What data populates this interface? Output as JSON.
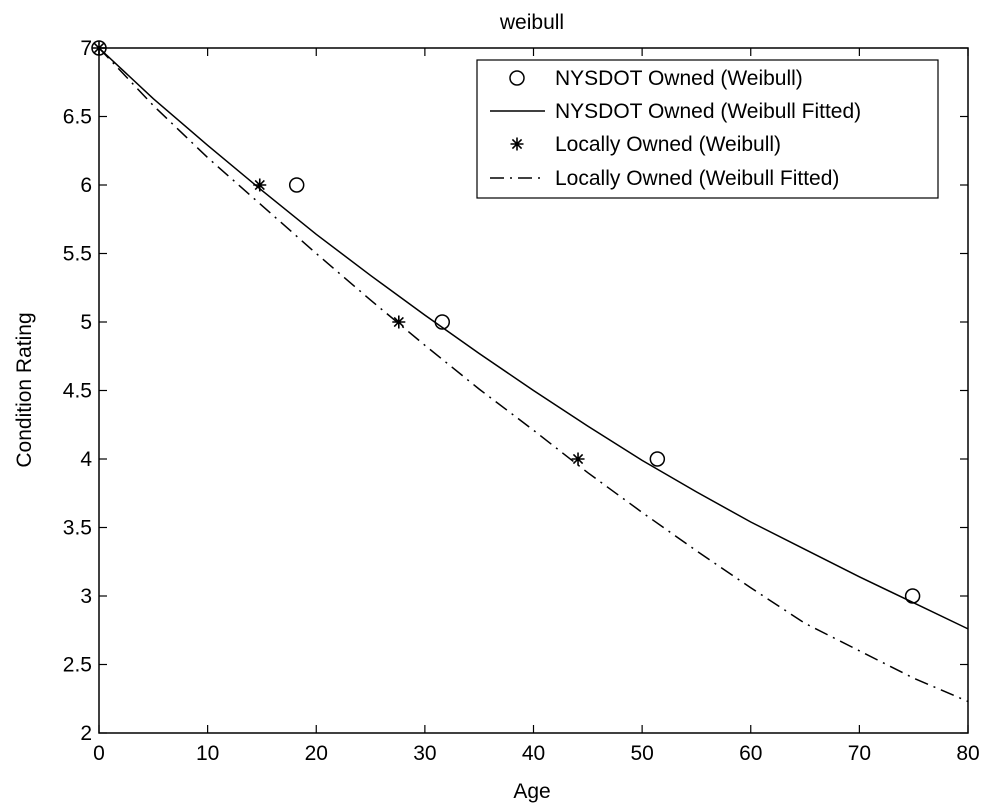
{
  "chart_data": {
    "type": "scatter",
    "title": "weibull",
    "xlabel": "Age",
    "ylabel": "Condition Rating",
    "xlim": [
      0,
      80
    ],
    "ylim": [
      2,
      7
    ],
    "xticks": [
      "0",
      "10",
      "20",
      "30",
      "40",
      "50",
      "60",
      "70",
      "80"
    ],
    "yticks": [
      "2",
      "2.5",
      "3",
      "3.5",
      "4",
      "4.5",
      "5",
      "5.5",
      "6",
      "6.5",
      "7"
    ],
    "grid": false,
    "legend_position": "top-right",
    "series": [
      {
        "name": "NYSDOT Owned (Weibull)",
        "style": "circle",
        "color": "#000000",
        "x": [
          0,
          18.2,
          31.6,
          51.4,
          74.9
        ],
        "y": [
          7,
          6,
          5,
          4,
          3
        ]
      },
      {
        "name": "NYSDOT Owned (Weibull Fitted)",
        "style": "solid-line",
        "color": "#000000",
        "x": [
          0,
          5,
          10,
          15,
          20,
          25,
          30,
          35,
          40,
          45,
          50,
          55,
          60,
          65,
          70,
          75,
          80
        ],
        "y": [
          7,
          6.63,
          6.29,
          5.96,
          5.64,
          5.34,
          5.05,
          4.77,
          4.5,
          4.24,
          3.99,
          3.76,
          3.54,
          3.34,
          3.14,
          2.95,
          2.76
        ]
      },
      {
        "name": "Locally Owned (Weibull)",
        "style": "asterisk",
        "color": "#000000",
        "x": [
          0,
          14.8,
          27.6,
          44.1
        ],
        "y": [
          7,
          6,
          5,
          4
        ]
      },
      {
        "name": "Locally Owned (Weibull Fitted)",
        "style": "dashdot-line",
        "color": "#000000",
        "x": [
          0,
          5,
          10,
          15,
          20,
          25,
          30,
          35,
          40,
          45,
          50,
          55,
          60,
          65,
          70,
          75,
          80
        ],
        "y": [
          7,
          6.58,
          6.2,
          5.85,
          5.5,
          5.16,
          4.83,
          4.51,
          4.21,
          3.9,
          3.61,
          3.33,
          3.06,
          2.8,
          2.6,
          2.4,
          2.23
        ]
      }
    ]
  }
}
